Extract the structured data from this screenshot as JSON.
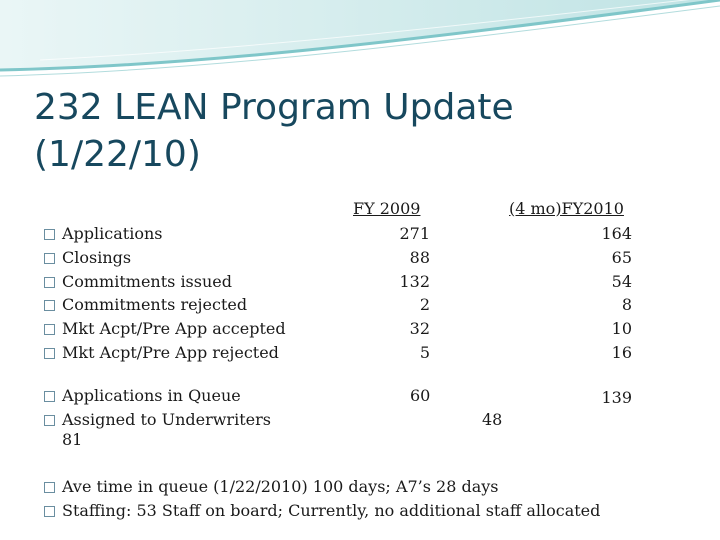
{
  "slide": {
    "title_line1": "232 LEAN Program Update",
    "title_line2": "(1/22/10)"
  },
  "columns": {
    "fy2009": "FY 2009",
    "fy2010": "(4 mo)FY2010"
  },
  "rows": [
    {
      "label": "Applications",
      "fy2009": "271",
      "fy2010": "164"
    },
    {
      "label": "Closings",
      "fy2009": "88",
      "fy2010": "65"
    },
    {
      "label": "Commitments issued",
      "fy2009": "132",
      "fy2010": "54"
    },
    {
      "label": "Commitments rejected",
      "fy2009": "2",
      "fy2010": "8"
    },
    {
      "label": "Mkt Acpt/Pre App accepted",
      "fy2009": "32",
      "fy2010": "10"
    },
    {
      "label": "Mkt Acpt/Pre App rejected",
      "fy2009": "5",
      "fy2010": "16"
    }
  ],
  "queue": {
    "applications_label": "Applications in Queue",
    "applications_fy2009": "60",
    "applications_fy2010": "139",
    "assigned_label": "Assigned to Underwriters",
    "assigned_fy2009": "81",
    "assigned_fy2010": "48"
  },
  "notes": [
    "Ave time in queue (1/22/2010) 100 days; A7’s 28 days",
    "Staffing: 53 Staff on board; Currently, no additional staff allocated"
  ],
  "colors": {
    "title": "#17485e",
    "header_teal": "#7fc6c9",
    "header_light": "#d9eff0"
  }
}
